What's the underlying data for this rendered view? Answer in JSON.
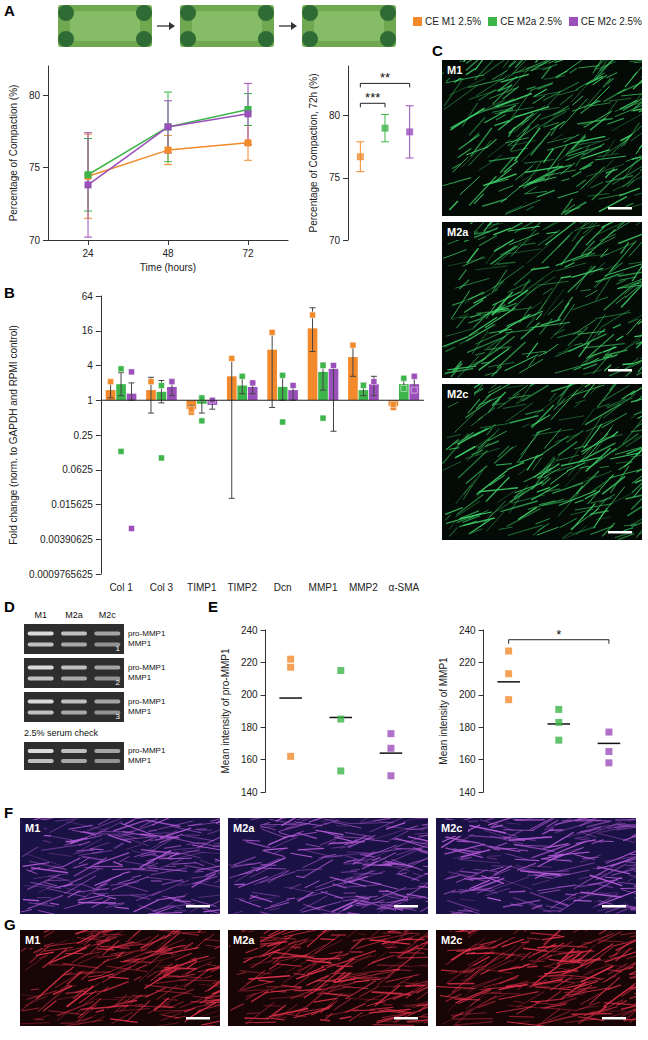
{
  "chart_data": [
    {
      "panel": "A",
      "type": "line",
      "x_label": "Time (hours)",
      "y_label": "Percentage of Compaction (%)",
      "x": [
        24,
        48,
        72
      ],
      "xlim": [
        12,
        84
      ],
      "xticks": [
        24,
        48,
        72
      ],
      "ylim": [
        70,
        82
      ],
      "yticks": [
        70,
        75,
        80
      ],
      "grid": false,
      "legend": "upper right",
      "marker": "square",
      "series": [
        {
          "name": "CE M1 2.5%",
          "color": "#f28a2c",
          "values": [
            74.4,
            76.2,
            76.7
          ],
          "errors": [
            2.9,
            1.0,
            1.2
          ]
        },
        {
          "name": "CE M2a 2.5%",
          "color": "#3db54a",
          "values": [
            74.5,
            77.8,
            79.0
          ],
          "errors": [
            2.5,
            2.4,
            1.1
          ]
        },
        {
          "name": "CE M2c 2.5%",
          "color": "#9b4fba",
          "values": [
            73.8,
            77.8,
            78.7
          ],
          "errors": [
            3.6,
            1.8,
            2.1
          ]
        }
      ]
    },
    {
      "type": "scatter",
      "y_label": "Percentage of Compaction, 72h (%)",
      "categories": [
        null,
        null,
        null
      ],
      "ylim": [
        70,
        84
      ],
      "yticks": [
        70,
        75,
        80
      ],
      "grid": false,
      "tick_labels": "y",
      "marker": "square",
      "series": [
        {
          "name": "CE M1 2.5%",
          "color": "#f28a2c",
          "value": 76.7,
          "error": 1.2
        },
        {
          "name": "CE M2a 2.5%",
          "color": "#3db54a",
          "value": 79.0,
          "error": 1.1
        },
        {
          "name": "CE M2c 2.5%",
          "color": "#9b4fba",
          "value": 78.7,
          "error": 2.1
        }
      ],
      "significance": [
        {
          "between": [
            "CE M1 2.5%",
            "CE M2a 2.5%"
          ],
          "y": 81.0,
          "label": "***"
        },
        {
          "between": [
            "CE M1 2.5%",
            "CE M2c 2.5%"
          ],
          "y": 82.6,
          "label": "**"
        }
      ]
    },
    {
      "panel": "B",
      "type": "bar",
      "y_label": "Fold change (norm. to GAPDH and RPMI control)",
      "categories": [
        "Col 1",
        "Col 3",
        "TIMP1",
        "TIMP2",
        "Dcn",
        "MMP1",
        "MMP2",
        "α-SMA"
      ],
      "log": "y",
      "ylim": [
        0.0009765625,
        64
      ],
      "yticks": [
        0.0009765625,
        0.00390625,
        0.015625,
        0.0625,
        0.25,
        1,
        4,
        16,
        64
      ],
      "baseline": 1,
      "grid": false,
      "series": [
        {
          "name": "CE M1 2.5%",
          "color": "#f28a2c",
          "values": [
            1.5,
            1.5,
            0.7,
            2.6,
            7.5,
            17.6,
            5.6,
            0.79
          ],
          "errors": [
            [
              1.1,
              2.0
            ],
            [
              0.6,
              2.5
            ],
            [
              0.6,
              0.8
            ],
            [
              0.02,
              5.0
            ],
            [
              0.75,
              14
            ],
            [
              7,
              40
            ],
            [
              2.6,
              9
            ],
            [
              0.7,
              0.9
            ]
          ],
          "points": [
            [
              2.1
            ],
            [
              2.1
            ],
            [
              0.62,
              0.7
            ],
            [
              5.3
            ],
            [
              15
            ],
            [
              30
            ],
            [
              9
            ],
            [
              0.75,
              0.85
            ]
          ]
        },
        {
          "name": "CE M2a 2.5%",
          "color": "#3db54a",
          "values": [
            1.9,
            1.4,
            0.87,
            1.8,
            1.7,
            3.1,
            1.5,
            1.9
          ],
          "errors": [
            [
              1.2,
              3.0
            ],
            [
              0.9,
              2.2
            ],
            [
              0.6,
              1.1
            ],
            [
              1.3,
              2.6
            ],
            [
              1.0,
              2.7
            ],
            [
              1.5,
              4.5
            ],
            [
              1.2,
              2.0
            ],
            [
              1.5,
              2.4
            ]
          ],
          "points": [
            [
              3.5,
              0.13
            ],
            [
              1.8,
              0.1
            ],
            [
              1.1,
              0.44
            ],
            [
              2.6
            ],
            [
              2.7,
              0.42
            ],
            [
              4.0,
              0.49
            ],
            [
              1.8
            ],
            [
              2.4,
              1.6
            ]
          ]
        },
        {
          "name": "CE M2c 2.5%",
          "color": "#9b4fba",
          "values": [
            1.3,
            1.7,
            0.83,
            1.7,
            1.5,
            3.5,
            1.9,
            1.9
          ],
          "errors": [
            [
              1.0,
              2.0
            ],
            [
              1.2,
              2.3
            ],
            [
              0.7,
              1.0
            ],
            [
              1.3,
              2.0
            ],
            [
              1.0,
              1.9
            ],
            [
              0.29,
              4.2
            ],
            [
              1.2,
              2.6
            ],
            [
              1.4,
              2.6
            ]
          ],
          "points": [
            [
              3.1,
              0.006
            ],
            [
              2.1
            ],
            [
              1.0
            ],
            [
              2.0
            ],
            [
              1.8
            ],
            [
              4.0
            ],
            [
              2.1
            ],
            [
              2.6,
              1.5
            ]
          ]
        }
      ]
    },
    {
      "panel": "E",
      "type": "scatter",
      "y_label": "Mean intensity of pro-MMP1",
      "categories": [
        null,
        null,
        null
      ],
      "ylim": [
        140,
        240
      ],
      "yticks": [
        140,
        160,
        180,
        200,
        220,
        240
      ],
      "grid": false,
      "tick_labels": "y",
      "marker": "square",
      "series": [
        {
          "name": "CE M1 2.5%",
          "color": "#f28a2c",
          "points": [
            222,
            217,
            162
          ],
          "mean": 198
        },
        {
          "name": "CE M2a 2.5%",
          "color": "#3db54a",
          "points": [
            215,
            185,
            153
          ],
          "mean": 186
        },
        {
          "name": "CE M2c 2.5%",
          "color": "#9b4fba",
          "points": [
            176,
            167,
            150
          ],
          "mean": 164
        }
      ]
    },
    {
      "type": "scatter",
      "y_label": "Mean intensity of MMP1",
      "categories": [
        null,
        null,
        null
      ],
      "ylim": [
        140,
        240
      ],
      "yticks": [
        140,
        160,
        180,
        200,
        220,
        240
      ],
      "grid": false,
      "tick_labels": "y",
      "marker": "square",
      "series": [
        {
          "name": "CE M1 2.5%",
          "color": "#f28a2c",
          "points": [
            227,
            213,
            197
          ],
          "mean": 208
        },
        {
          "name": "CE M2a 2.5%",
          "color": "#3db54a",
          "points": [
            191,
            183,
            172
          ],
          "mean": 182
        },
        {
          "name": "CE M2c 2.5%",
          "color": "#9b4fba",
          "points": [
            177,
            165,
            158
          ],
          "mean": 170
        }
      ],
      "significance": [
        {
          "between": [
            "CE M1 2.5%",
            "CE M2c 2.5%"
          ],
          "y": 234,
          "label": "*"
        }
      ]
    }
  ],
  "image_panels": [
    {
      "letter": "C",
      "images": [
        "M1",
        "M2a",
        "M2c"
      ]
    },
    {
      "letter": "D",
      "lanes": [
        "M1",
        "M2a",
        "M2c"
      ],
      "bands": [
        "pro-MMP1",
        "MMP1"
      ],
      "gels": [
        "1",
        "2",
        "3"
      ],
      "control": "2.5% serum check"
    },
    {
      "letter": "F",
      "images": [
        "M1",
        "M2a",
        "M2c"
      ]
    },
    {
      "letter": "G",
      "images": [
        "M1",
        "M2a",
        "M2c"
      ]
    }
  ]
}
